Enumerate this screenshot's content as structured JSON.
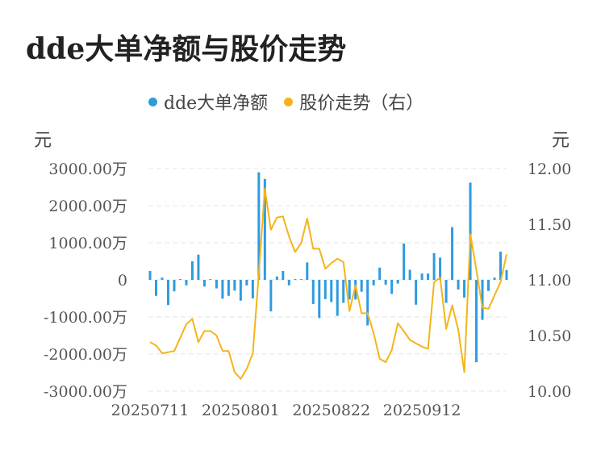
{
  "chart_data": {
    "type": "bar+line",
    "title": "dde大单净额与股价走势",
    "legend": [
      {
        "name": "dde大单净额",
        "color": "#2e9be0"
      },
      {
        "name": "股价走势（右）",
        "color": "#f4b41a"
      }
    ],
    "y_left_unit": "元",
    "y_right_unit": "元",
    "y_left_ticks": [
      "3000.00万",
      "2000.00万",
      "1000.00万",
      "0",
      "-1000.00万",
      "-2000.00万",
      "-3000.00万"
    ],
    "y_right_ticks": [
      "12.00",
      "11.50",
      "11.00",
      "10.50",
      "10.00"
    ],
    "ylim_left": [
      -3000,
      3000
    ],
    "ylim_right": [
      10.0,
      12.0
    ],
    "x_tick_labels": [
      "20250711",
      "20250801",
      "20250822",
      "20250912"
    ],
    "x_tick_indices": [
      0,
      15,
      30,
      45
    ],
    "grid": true,
    "legend_position": "top",
    "series": [
      {
        "name": "dde大单净额",
        "unit": "万元",
        "type": "bar",
        "values": [
          240,
          -430,
          60,
          -680,
          -310,
          20,
          -150,
          500,
          680,
          -180,
          20,
          -230,
          -510,
          -430,
          -290,
          -560,
          -150,
          -500,
          2900,
          2720,
          -850,
          90,
          240,
          -150,
          20,
          20,
          470,
          -650,
          -1030,
          -520,
          -600,
          -970,
          -620,
          -530,
          -530,
          -320,
          -1230,
          -150,
          330,
          -130,
          -380,
          -100,
          980,
          270,
          -670,
          170,
          170,
          720,
          600,
          -620,
          1420,
          -260,
          -480,
          2620,
          -2220,
          -1080,
          -300,
          60,
          760,
          260
        ]
      },
      {
        "name": "股价走势（右）",
        "unit": "元",
        "type": "line",
        "values": [
          10.44,
          10.41,
          10.34,
          10.35,
          10.36,
          10.48,
          10.6,
          10.65,
          10.44,
          10.54,
          10.54,
          10.5,
          10.36,
          10.36,
          10.17,
          10.11,
          10.2,
          10.34,
          11.05,
          11.82,
          11.45,
          11.56,
          11.57,
          11.39,
          11.25,
          11.33,
          11.55,
          11.28,
          11.28,
          11.1,
          11.15,
          11.19,
          11.16,
          10.72,
          10.95,
          10.7,
          10.7,
          10.52,
          10.29,
          10.26,
          10.37,
          10.61,
          10.54,
          10.46,
          10.43,
          10.4,
          10.38,
          10.98,
          11.02,
          10.56,
          10.77,
          10.55,
          10.17,
          11.41,
          11.09,
          10.75,
          10.74,
          10.86,
          10.98,
          11.23
        ]
      }
    ]
  }
}
